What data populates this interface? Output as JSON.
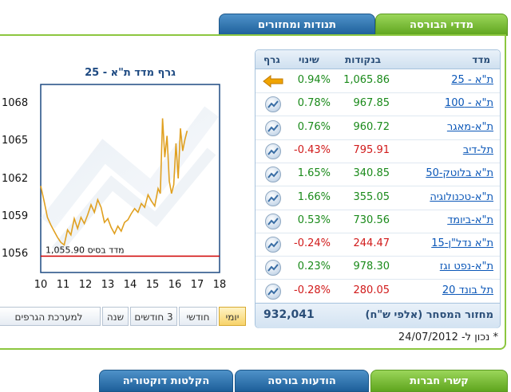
{
  "tabs": {
    "indices": "מדדי הבורסה",
    "turnover": "תנודות ומחזורים"
  },
  "table": {
    "headers": {
      "index": "מדד",
      "points": "בנקודות",
      "change": "שינוי",
      "graph": "גרף"
    },
    "rows": [
      {
        "name": "ת\"א - 25",
        "points": "1,065.86",
        "change": "0.94%",
        "dir": "up",
        "graph": "arrow"
      },
      {
        "name": "ת\"א - 100",
        "points": "967.85",
        "change": "0.78%",
        "dir": "up",
        "graph": "chart"
      },
      {
        "name": "ת\"א-מאגר",
        "points": "960.72",
        "change": "0.76%",
        "dir": "up",
        "graph": "chart"
      },
      {
        "name": "תל-דיב",
        "points": "795.91",
        "change": "-0.43%",
        "dir": "down",
        "graph": "chart"
      },
      {
        "name": "ת\"א בלוטק-50",
        "points": "340.85",
        "change": "1.65%",
        "dir": "up",
        "graph": "chart"
      },
      {
        "name": "ת\"א-טכנולוגיה",
        "points": "355.05",
        "change": "1.66%",
        "dir": "up",
        "graph": "chart"
      },
      {
        "name": "ת\"א-ביומד",
        "points": "730.56",
        "change": "0.53%",
        "dir": "up",
        "graph": "chart"
      },
      {
        "name": "ת\"א נדל\"ן-15",
        "points": "244.47",
        "change": "-0.24%",
        "dir": "down",
        "graph": "chart"
      },
      {
        "name": "ת\"א-נפט וגז",
        "points": "978.30",
        "change": "0.23%",
        "dir": "up",
        "graph": "chart"
      },
      {
        "name": "תל בונד 20",
        "points": "280.05",
        "change": "-0.28%",
        "dir": "down",
        "graph": "chart"
      }
    ],
    "turnover_label": "מחזור המסחר (אלפי ש\"ח)",
    "turnover_value": "932,041"
  },
  "date_note": "* נכון ל- 24/07/2012",
  "chart_data": {
    "type": "line",
    "title": "גרף מדד ת\"א - 25",
    "x_ticks": [
      "10",
      "11",
      "12",
      "13",
      "14",
      "15",
      "16",
      "17",
      "18"
    ],
    "y_ticks": [
      "1068",
      "1065",
      "1062",
      "1059",
      "1056"
    ],
    "xlim": [
      10,
      18
    ],
    "ylim": [
      1054.6,
      1069.6
    ],
    "baseline": {
      "value": 1055.9,
      "label": "מדד בסיס 1,055.90"
    },
    "series": [
      {
        "x": [
          10.0,
          10.15,
          10.3,
          10.45,
          10.6,
          10.75,
          10.9,
          11.05,
          11.2,
          11.35,
          11.5,
          11.65,
          11.8,
          11.95,
          12.1,
          12.25,
          12.4,
          12.55,
          12.7,
          12.85,
          13.0,
          13.15,
          13.3,
          13.45,
          13.6,
          13.75,
          13.9,
          14.05,
          14.2,
          14.35,
          14.5,
          14.65,
          14.8,
          14.95,
          15.1,
          15.25,
          15.35,
          15.45,
          15.55,
          15.65,
          15.75,
          15.85,
          15.95,
          16.05,
          16.15,
          16.25,
          16.35,
          16.45,
          16.55
        ],
        "y": [
          1061.5,
          1060.3,
          1059.0,
          1058.4,
          1057.9,
          1057.4,
          1057.0,
          1056.8,
          1058.0,
          1057.6,
          1058.9,
          1058.1,
          1059.0,
          1058.5,
          1059.2,
          1060.0,
          1059.4,
          1060.4,
          1059.8,
          1058.6,
          1058.9,
          1058.2,
          1057.7,
          1058.3,
          1057.9,
          1058.6,
          1058.8,
          1059.3,
          1059.7,
          1059.4,
          1060.1,
          1059.8,
          1060.8,
          1060.3,
          1059.9,
          1061.3,
          1060.9,
          1066.9,
          1063.8,
          1065.5,
          1061.9,
          1060.9,
          1061.6,
          1064.9,
          1062.1,
          1066.1,
          1064.3,
          1065.2,
          1065.9
        ]
      }
    ]
  },
  "range_buttons": [
    {
      "label": "יומי",
      "selected": true
    },
    {
      "label": "חודשי",
      "selected": false
    },
    {
      "label": "3 חודשים",
      "selected": false
    },
    {
      "label": "שנה",
      "selected": false
    },
    {
      "label": "למערכת הגרפים",
      "selected": false
    }
  ],
  "bottom_tabs": [
    "קשרי חברות",
    "הודעות בורסה",
    "הקלטות דוקטוריה"
  ],
  "colors": {
    "up": "#1a8a1a",
    "down": "#d11a1a",
    "series": "#e0a020",
    "baseline": "#d00000",
    "green_tab": "#6cb12a",
    "blue_tab": "#2a6aa6"
  }
}
